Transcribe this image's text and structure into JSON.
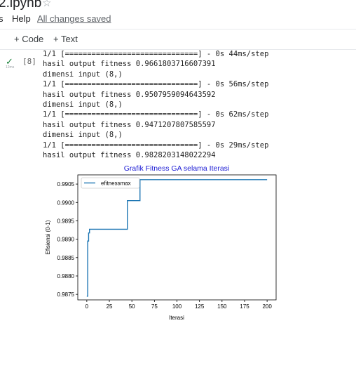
{
  "header": {
    "title": "2.ipynb",
    "star_icon": "star-outline-icon",
    "menu": [
      "s",
      "Help"
    ],
    "saved_status": "All changes saved"
  },
  "toolbar": {
    "add_code": "+ Code",
    "add_text": "+ Text"
  },
  "cell": {
    "exec_count": "[8]",
    "status_icon": "check-icon",
    "exec_time": "12ms",
    "output_lines": [
      "1/1 [==============================] - 0s 44ms/step",
      "hasil output fitness 0.9661803716607391",
      "dimensi input (8,)",
      "1/1 [==============================] - 0s 56ms/step",
      "hasil output fitness 0.9507959094643592",
      "dimensi input (8,)",
      "1/1 [==============================] - 0s 62ms/step",
      "hasil output fitness 0.9471207807585597",
      "dimensi input (8,)",
      "1/1 [==============================] - 0s 29ms/step",
      "hasil output fitness 0.9828203148022294"
    ]
  },
  "chart_data": {
    "type": "line",
    "title": "Grafik Fitness GA selama Iterasi",
    "xlabel": "Iterasi",
    "ylabel": "Efisiensi (0-1)",
    "xlim": [
      -10,
      210
    ],
    "ylim": [
      0.98735,
      0.99075
    ],
    "xticks": [
      0,
      25,
      50,
      75,
      100,
      125,
      150,
      175,
      200
    ],
    "yticks": [
      0.9875,
      0.988,
      0.9885,
      0.989,
      0.9895,
      0.99,
      0.9905
    ],
    "ytick_labels": [
      "0.9875",
      "0.9880",
      "0.9885",
      "0.9890",
      "0.9895",
      "0.9900",
      "0.9905"
    ],
    "legend_position": "top-left",
    "grid": false,
    "color": "#1f77b4",
    "series": [
      {
        "name": "efitnessmax",
        "x": [
          0,
          1,
          1,
          2,
          2,
          3,
          3,
          45,
          45,
          50,
          50,
          59,
          59,
          200
        ],
        "y": [
          0.98745,
          0.98745,
          0.98895,
          0.98895,
          0.98917,
          0.98917,
          0.98927,
          0.98927,
          0.99005,
          0.99005,
          0.99005,
          0.99005,
          0.99062,
          0.99062
        ]
      }
    ]
  }
}
